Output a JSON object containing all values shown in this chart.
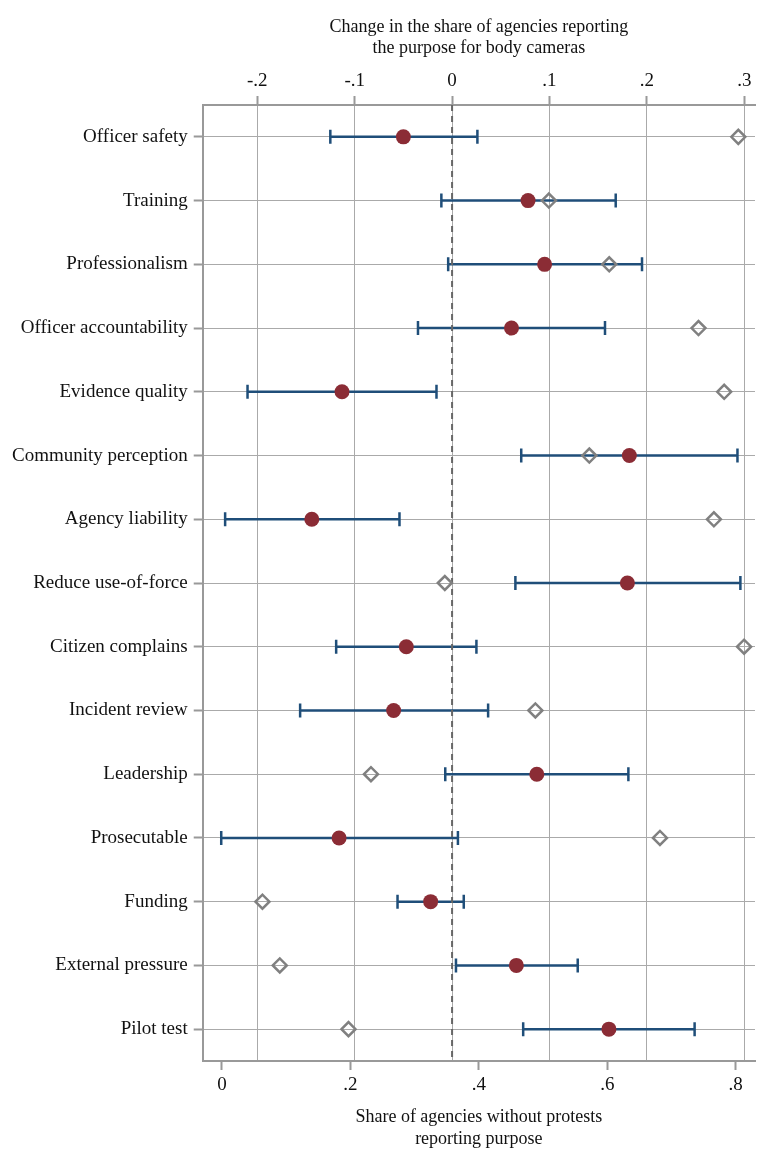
{
  "chart_data": {
    "type": "scatter",
    "orientation": "horizontal",
    "categories": [
      "Officer safety",
      "Training",
      "Professionalism",
      "Officer accountability",
      "Evidence quality",
      "Community perception",
      "Agency liability",
      "Reduce use-of-force",
      "Citizen complains",
      "Incident review",
      "Leadership",
      "Prosecutable",
      "Funding",
      "External pressure",
      "Pilot test"
    ],
    "xlabel": "Share of agencies without protests reporting purpose",
    "x2label": "Change in the share of agencies reporting the purpose for body cameras",
    "xlim": [
      -0.03,
      0.83
    ],
    "xticks": [
      0,
      {
        "value": 0.2,
        "label": ".2"
      },
      {
        "value": 0.4,
        "label": ".4"
      },
      {
        "value": 0.6,
        "label": ".6"
      },
      {
        "value": 0.8,
        "label": ".8"
      }
    ],
    "x2lim": [
      -0.256,
      0.311
    ],
    "x2ticks": [
      {
        "value": -0.2,
        "label": "-.2"
      },
      {
        "value": -0.1,
        "label": "-.1"
      },
      0,
      {
        "value": 0.1,
        "label": ".1"
      },
      {
        "value": 0.2,
        "label": ".2"
      },
      {
        "value": 0.3,
        "label": ".3"
      }
    ],
    "grid": true,
    "ref_lines": [
      {
        "axis": "x2",
        "value": 0,
        "color": "#666666",
        "line_style": "dashed"
      }
    ],
    "series": [
      {
        "color": "#808080",
        "marker": "diamond",
        "values": [
          0.804,
          0.509,
          0.603,
          0.742,
          0.782,
          0.572,
          0.766,
          0.347,
          0.813,
          0.488,
          0.232,
          0.682,
          0.063,
          0.09,
          0.197
        ]
      },
      {
        "color": "#8b2c35",
        "marker": "circle",
        "axis": "x2",
        "values": [
          -0.05,
          0.078,
          0.095,
          0.061,
          -0.113,
          0.182,
          -0.144,
          0.18,
          -0.047,
          -0.06,
          0.087,
          -0.116,
          -0.022,
          0.066,
          0.161
        ],
        "errors": [
          [
            -0.125,
            0.026
          ],
          [
            -0.011,
            0.168
          ],
          [
            -0.004,
            0.195
          ],
          [
            -0.035,
            0.157
          ],
          [
            -0.21,
            -0.016
          ],
          [
            0.071,
            0.293
          ],
          [
            -0.233,
            -0.054
          ],
          [
            0.065,
            0.296
          ],
          [
            -0.119,
            0.025
          ],
          [
            -0.156,
            0.037
          ],
          [
            -0.007,
            0.181
          ],
          [
            -0.237,
            0.006
          ],
          [
            -0.056,
            0.012
          ],
          [
            0.004,
            0.129
          ],
          [
            0.073,
            0.249
          ]
        ]
      }
    ]
  }
}
